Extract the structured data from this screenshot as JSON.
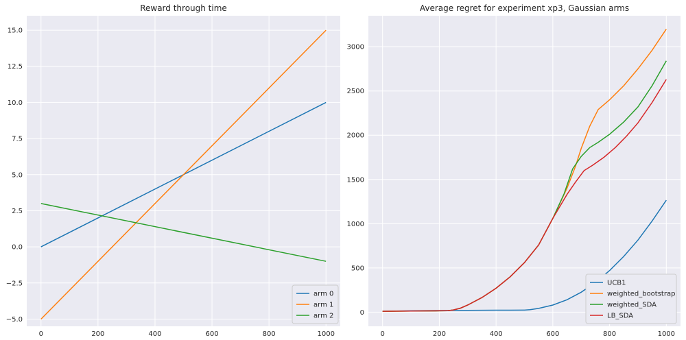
{
  "chart_data": [
    {
      "type": "line",
      "title": "Reward through time",
      "xlabel": "",
      "ylabel": "",
      "xlim": [
        -50,
        1050
      ],
      "ylim": [
        -5.5,
        16
      ],
      "xticks": [
        0,
        200,
        400,
        600,
        800,
        1000
      ],
      "xtick_labels": [
        "0",
        "200",
        "400",
        "600",
        "800",
        "1000"
      ],
      "yticks": [
        -5.0,
        -2.5,
        0.0,
        2.5,
        5.0,
        7.5,
        10.0,
        12.5,
        15.0
      ],
      "ytick_labels": [
        "−5.0",
        "−2.5",
        "0.0",
        "2.5",
        "5.0",
        "7.5",
        "10.0",
        "12.5",
        "15.0"
      ],
      "grid": true,
      "legend_position": "bottom-right",
      "series": [
        {
          "name": "arm 0",
          "color": "#1f77b4",
          "points": [
            [
              0,
              0
            ],
            [
              1000,
              10
            ]
          ]
        },
        {
          "name": "arm 1",
          "color": "#ff7f0e",
          "points": [
            [
              0,
              -5
            ],
            [
              1000,
              15
            ]
          ]
        },
        {
          "name": "arm 2",
          "color": "#2ca02c",
          "points": [
            [
              0,
              3
            ],
            [
              1000,
              -1
            ]
          ]
        }
      ]
    },
    {
      "type": "line",
      "title": "Average regret for experiment xp3, Gaussian arms",
      "xlabel": "",
      "ylabel": "",
      "xlim": [
        -50,
        1050
      ],
      "ylim": [
        -160,
        3350
      ],
      "xticks": [
        0,
        200,
        400,
        600,
        800,
        1000
      ],
      "xtick_labels": [
        "0",
        "200",
        "400",
        "600",
        "800",
        "1000"
      ],
      "yticks": [
        0,
        500,
        1000,
        1500,
        2000,
        2500,
        3000
      ],
      "ytick_labels": [
        "0",
        "500",
        "1000",
        "1500",
        "2000",
        "2500",
        "3000"
      ],
      "grid": true,
      "legend_position": "bottom-right",
      "series": [
        {
          "name": "UCB1",
          "color": "#1f77b4",
          "points": [
            [
              0,
              10
            ],
            [
              100,
              15
            ],
            [
              200,
              18
            ],
            [
              300,
              20
            ],
            [
              400,
              22
            ],
            [
              450,
              22
            ],
            [
              500,
              23
            ],
            [
              520,
              28
            ],
            [
              550,
              42
            ],
            [
              600,
              80
            ],
            [
              650,
              140
            ],
            [
              700,
              225
            ],
            [
              750,
              335
            ],
            [
              800,
              470
            ],
            [
              850,
              630
            ],
            [
              900,
              815
            ],
            [
              950,
              1030
            ],
            [
              1000,
              1265
            ]
          ]
        },
        {
          "name": "weighted_bootstrap",
          "color": "#ff7f0e",
          "points": [
            [
              0,
              10
            ],
            [
              100,
              12
            ],
            [
              200,
              15
            ],
            [
              230,
              16
            ],
            [
              250,
              25
            ],
            [
              275,
              45
            ],
            [
              300,
              80
            ],
            [
              350,
              165
            ],
            [
              400,
              270
            ],
            [
              450,
              400
            ],
            [
              500,
              560
            ],
            [
              550,
              760
            ],
            [
              600,
              1060
            ],
            [
              650,
              1400
            ],
            [
              680,
              1650
            ],
            [
              700,
              1850
            ],
            [
              730,
              2100
            ],
            [
              760,
              2290
            ],
            [
              800,
              2400
            ],
            [
              850,
              2560
            ],
            [
              900,
              2750
            ],
            [
              950,
              2960
            ],
            [
              1000,
              3200
            ]
          ]
        },
        {
          "name": "weighted_SDA",
          "color": "#2ca02c",
          "points": [
            [
              0,
              10
            ],
            [
              100,
              12
            ],
            [
              200,
              15
            ],
            [
              230,
              16
            ],
            [
              250,
              25
            ],
            [
              275,
              45
            ],
            [
              300,
              80
            ],
            [
              350,
              165
            ],
            [
              400,
              270
            ],
            [
              450,
              400
            ],
            [
              500,
              560
            ],
            [
              550,
              760
            ],
            [
              600,
              1060
            ],
            [
              640,
              1340
            ],
            [
              670,
              1620
            ],
            [
              700,
              1760
            ],
            [
              730,
              1860
            ],
            [
              760,
              1920
            ],
            [
              800,
              2010
            ],
            [
              850,
              2150
            ],
            [
              900,
              2320
            ],
            [
              950,
              2560
            ],
            [
              1000,
              2840
            ]
          ]
        },
        {
          "name": "LB_SDA",
          "color": "#d62728",
          "points": [
            [
              0,
              10
            ],
            [
              100,
              12
            ],
            [
              200,
              15
            ],
            [
              230,
              16
            ],
            [
              250,
              25
            ],
            [
              275,
              45
            ],
            [
              300,
              80
            ],
            [
              350,
              165
            ],
            [
              400,
              270
            ],
            [
              450,
              400
            ],
            [
              500,
              560
            ],
            [
              550,
              760
            ],
            [
              600,
              1060
            ],
            [
              650,
              1330
            ],
            [
              680,
              1470
            ],
            [
              710,
              1600
            ],
            [
              740,
              1660
            ],
            [
              780,
              1750
            ],
            [
              820,
              1860
            ],
            [
              860,
              1990
            ],
            [
              900,
              2140
            ],
            [
              950,
              2370
            ],
            [
              1000,
              2630
            ]
          ]
        }
      ]
    }
  ]
}
